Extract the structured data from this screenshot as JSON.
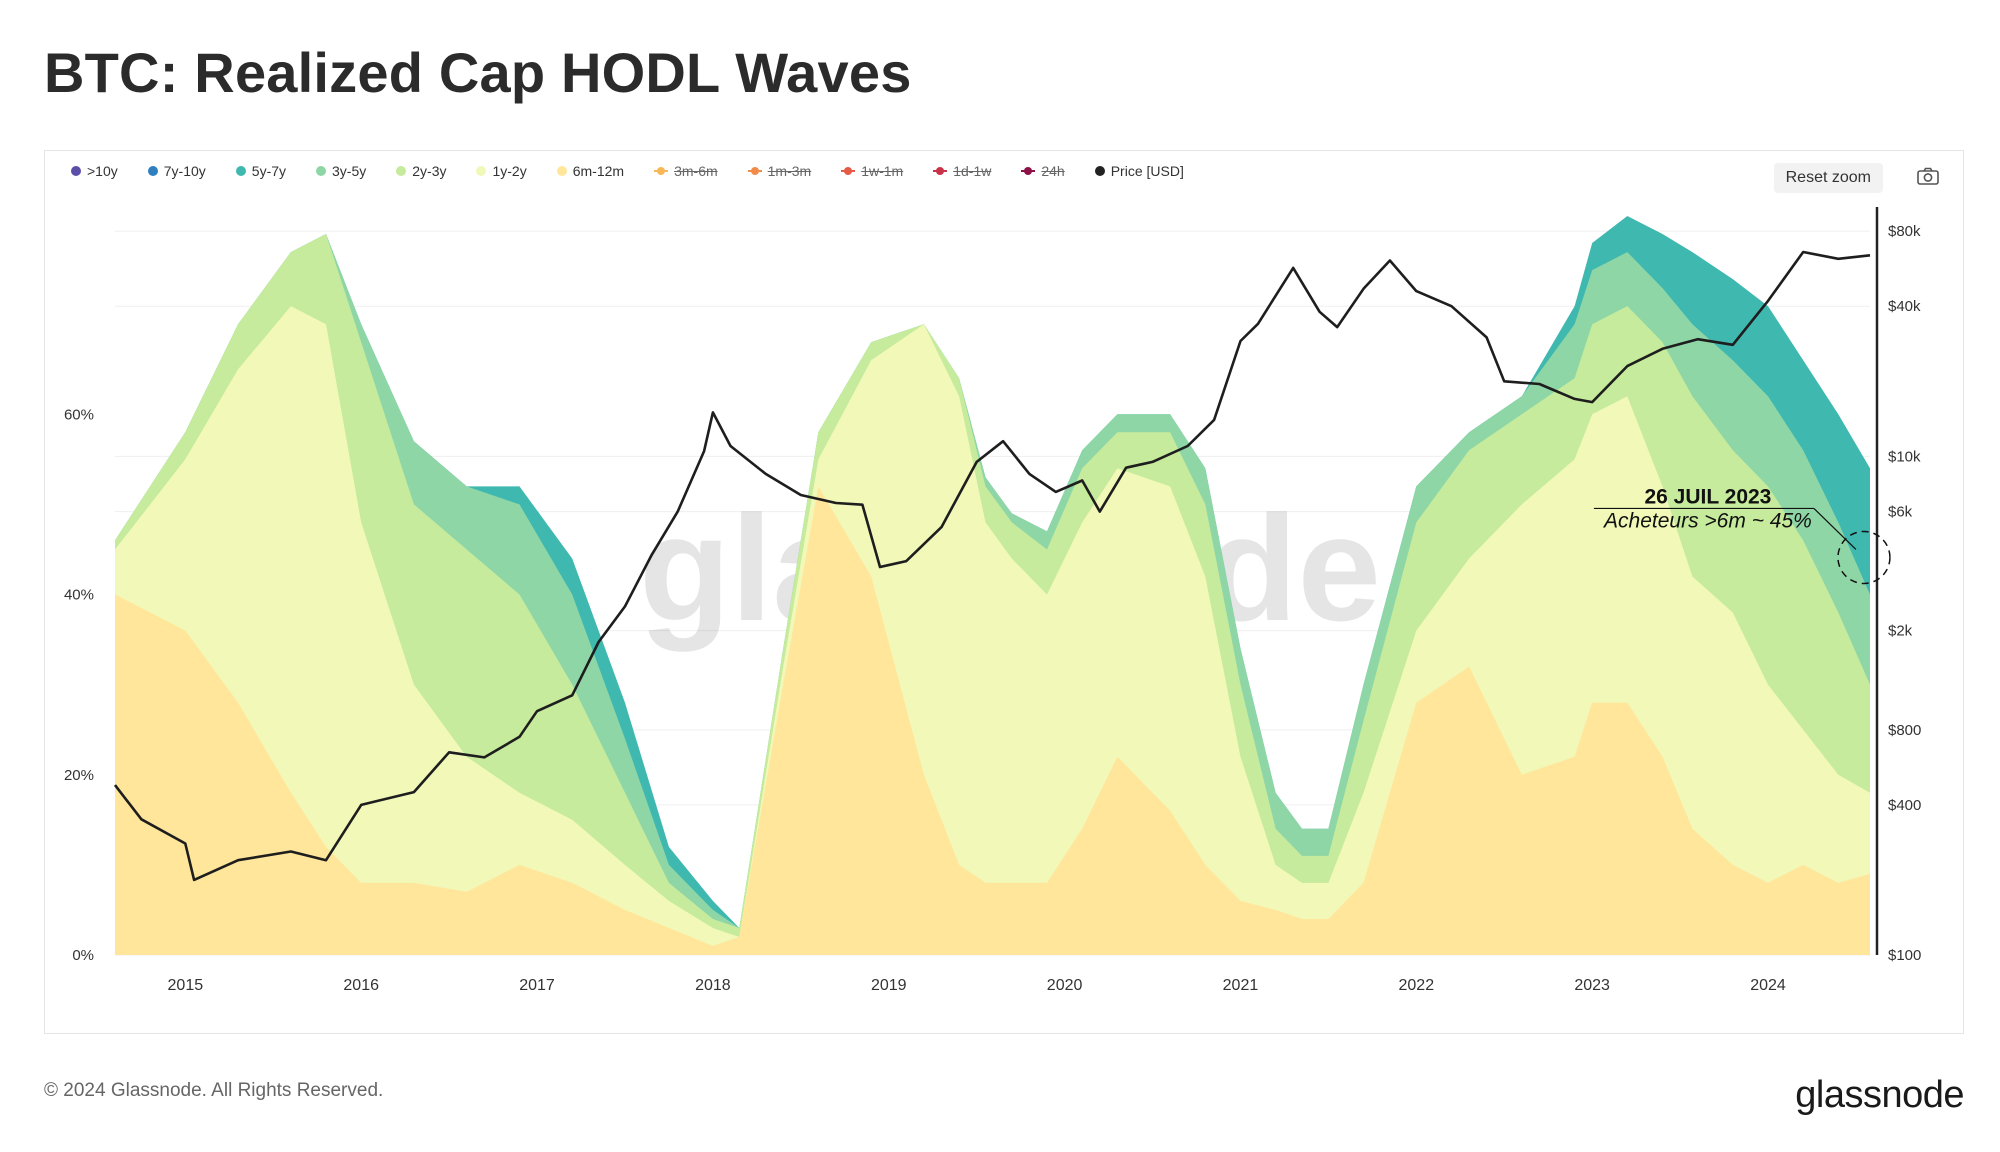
{
  "title": "BTC: Realized Cap HODL Waves",
  "reset_zoom_label": "Reset zoom",
  "footer": {
    "copyright": "© 2024 Glassnode. All Rights Reserved.",
    "logo": "glassnode",
    "watermark": "glassnode"
  },
  "legend": [
    {
      "label": ">10y",
      "color": "#5b4ea8",
      "enabled": true,
      "style": "dot"
    },
    {
      "label": "7y-10y",
      "color": "#2e7fc0",
      "enabled": true,
      "style": "dot"
    },
    {
      "label": "5y-7y",
      "color": "#3fb8b0",
      "enabled": true,
      "style": "dot"
    },
    {
      "label": "3y-5y",
      "color": "#8fd6a6",
      "enabled": true,
      "style": "dot"
    },
    {
      "label": "2y-3y",
      "color": "#c6eb9c",
      "enabled": true,
      "style": "dot"
    },
    {
      "label": "1y-2y",
      "color": "#f1f8b8",
      "enabled": true,
      "style": "dot"
    },
    {
      "label": "6m-12m",
      "color": "#ffe69a",
      "enabled": true,
      "style": "dot"
    },
    {
      "label": "3m-6m",
      "color": "#f8b857",
      "enabled": false,
      "style": "line"
    },
    {
      "label": "1m-3m",
      "color": "#f28b4a",
      "enabled": false,
      "style": "line"
    },
    {
      "label": "1w-1m",
      "color": "#e45b46",
      "enabled": false,
      "style": "line"
    },
    {
      "label": "1d-1w",
      "color": "#c9334a",
      "enabled": false,
      "style": "line"
    },
    {
      "label": "24h",
      "color": "#8d1147",
      "enabled": false,
      "style": "line"
    },
    {
      "label": "Price [USD]",
      "color": "#222222",
      "enabled": true,
      "style": "dot"
    }
  ],
  "chart_data": {
    "type": "area",
    "title": "BTC: Realized Cap HODL Waves",
    "y_left": {
      "ticks": [
        0,
        20,
        40,
        60
      ],
      "labels": [
        "0%",
        "20%",
        "40%",
        "60%"
      ],
      "range": [
        0,
        83
      ]
    },
    "y_right": {
      "scale": "log",
      "range": [
        100,
        100000
      ],
      "ticks": [
        100,
        400,
        800,
        2000,
        6000,
        10000,
        40000,
        80000
      ],
      "labels": [
        "$100",
        "$400",
        "$800",
        "$2k",
        "$6k",
        "$10k",
        "$40k",
        "$80k"
      ]
    },
    "x": [
      2014.6,
      2015.0,
      2015.3,
      2015.6,
      2015.8,
      2016.0,
      2016.3,
      2016.6,
      2016.9,
      2017.2,
      2017.5,
      2017.75,
      2018.0,
      2018.15,
      2018.4,
      2018.6,
      2018.9,
      2019.2,
      2019.4,
      2019.55,
      2019.7,
      2019.9,
      2020.1,
      2020.3,
      2020.6,
      2020.8,
      2021.0,
      2021.2,
      2021.35,
      2021.5,
      2021.7,
      2022.0,
      2022.3,
      2022.6,
      2022.9,
      2023.0,
      2023.2,
      2023.4,
      2023.57,
      2023.8,
      2024.0,
      2024.2,
      2024.4,
      2024.58
    ],
    "x_ticks": [
      2015,
      2016,
      2017,
      2018,
      2019,
      2020,
      2021,
      2022,
      2023,
      2024
    ],
    "x_tick_labels": [
      "2015",
      "2016",
      "2017",
      "2018",
      "2019",
      "2020",
      "2021",
      "2022",
      "2023",
      "2024"
    ],
    "series": [
      {
        "name": "6m-12m",
        "color": "#ffe69a",
        "values": [
          40,
          36,
          28,
          18,
          12,
          8,
          8,
          7,
          10,
          8,
          5,
          3,
          1,
          2,
          30,
          52,
          42,
          20,
          10,
          8,
          8,
          8,
          14,
          22,
          16,
          10,
          6,
          5,
          4,
          4,
          8,
          28,
          32,
          20,
          22,
          28,
          28,
          22,
          14,
          10,
          8,
          10,
          8,
          9
        ]
      },
      {
        "name": "1y-2y",
        "color": "#f1f8b8",
        "values": [
          45,
          55,
          65,
          72,
          70,
          48,
          30,
          22,
          18,
          15,
          10,
          6,
          3,
          2,
          32,
          55,
          66,
          70,
          62,
          48,
          44,
          40,
          48,
          54,
          52,
          42,
          22,
          10,
          8,
          8,
          18,
          36,
          44,
          50,
          55,
          60,
          62,
          52,
          42,
          38,
          30,
          25,
          20,
          18
        ]
      },
      {
        "name": "2y-3y",
        "color": "#c6eb9c",
        "values": [
          46,
          58,
          70,
          78,
          80,
          68,
          50,
          45,
          40,
          30,
          18,
          8,
          4,
          3,
          34,
          58,
          68,
          70,
          64,
          52,
          48,
          45,
          54,
          58,
          58,
          50,
          30,
          14,
          11,
          11,
          26,
          48,
          56,
          60,
          64,
          70,
          72,
          68,
          62,
          56,
          52,
          46,
          38,
          30
        ]
      },
      {
        "name": "3y-5y",
        "color": "#8fd6a6",
        "values": [
          46,
          58,
          70,
          78,
          80,
          70,
          57,
          52,
          50,
          40,
          24,
          10,
          5,
          3,
          34,
          58,
          68,
          70,
          64,
          53,
          49,
          47,
          56,
          60,
          60,
          54,
          34,
          18,
          14,
          14,
          30,
          52,
          58,
          62,
          70,
          76,
          78,
          74,
          70,
          66,
          62,
          56,
          48,
          40
        ]
      },
      {
        "name": "5y-7y",
        "color": "#3fb8b0",
        "values": [
          46,
          58,
          70,
          78,
          80,
          70,
          57,
          52,
          52,
          44,
          28,
          12,
          6,
          3,
          34,
          58,
          68,
          70,
          64,
          53,
          49,
          47,
          56,
          60,
          60,
          54,
          34,
          18,
          14,
          14,
          30,
          52,
          58,
          62,
          72,
          79,
          82,
          80,
          78,
          75,
          72,
          66,
          60,
          54
        ]
      }
    ],
    "price_usd": {
      "x": [
        2014.6,
        2014.75,
        2015.0,
        2015.05,
        2015.3,
        2015.6,
        2015.8,
        2016.0,
        2016.3,
        2016.5,
        2016.7,
        2016.9,
        2017.0,
        2017.2,
        2017.35,
        2017.5,
        2017.65,
        2017.8,
        2017.95,
        2018.0,
        2018.1,
        2018.3,
        2018.5,
        2018.7,
        2018.85,
        2018.95,
        2019.1,
        2019.3,
        2019.5,
        2019.65,
        2019.8,
        2019.95,
        2020.1,
        2020.2,
        2020.35,
        2020.5,
        2020.7,
        2020.85,
        2021.0,
        2021.1,
        2021.3,
        2021.45,
        2021.55,
        2021.7,
        2021.85,
        2022.0,
        2022.2,
        2022.4,
        2022.5,
        2022.7,
        2022.9,
        2023.0,
        2023.2,
        2023.4,
        2023.6,
        2023.8,
        2024.0,
        2024.2,
        2024.4,
        2024.58
      ],
      "y": [
        480,
        350,
        280,
        200,
        240,
        260,
        240,
        400,
        450,
        650,
        620,
        750,
        950,
        1100,
        1800,
        2500,
        4000,
        6000,
        10500,
        15000,
        11000,
        8500,
        7000,
        6500,
        6400,
        3600,
        3800,
        5200,
        9500,
        11500,
        8500,
        7200,
        8000,
        6000,
        9000,
        9500,
        11000,
        14000,
        29000,
        34000,
        57000,
        38000,
        33000,
        47000,
        61000,
        46000,
        40000,
        30000,
        20000,
        19500,
        17000,
        16500,
        23000,
        27000,
        29500,
        28000,
        42000,
        66000,
        62000,
        64000
      ]
    },
    "annotation": {
      "title": "26 JUIL 2023",
      "text": "Acheteurs >6m ~ 45%",
      "x": 2024.5,
      "y": 45
    }
  }
}
